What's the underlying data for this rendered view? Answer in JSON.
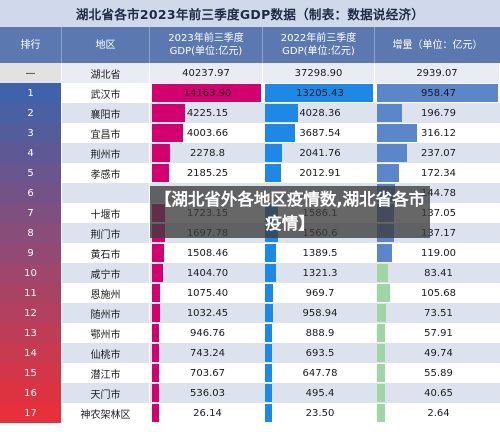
{
  "title": "湖北省各市2023年前三季度GDP数据（制表：数据说经济）",
  "headers": {
    "rank": "排行",
    "region": "地区",
    "gdp2023": "2023年前三季度GDP(单位:亿元)",
    "gdp2022": "2022年前三季度GDP(单位:亿元)",
    "growth": "增量（单位：亿元）"
  },
  "overlay_text": "【湖北省外各地区疫情数,湖北省各市疫情】",
  "colors": {
    "gdp2023_bar": "#d4006f",
    "gdp2022_bar": "#1d88e6",
    "growth_bar": "#5b86c9",
    "growth_low": "#9fd6a3",
    "row_alt": "#dce3ef",
    "rank_gradient_start": "#3e63aa",
    "rank_gradient_end": "#e8303a"
  },
  "total": {
    "rank": "—",
    "region": "湖北省",
    "gdp2023": "40237.97",
    "gdp2022": "37298.90",
    "growth": "2939.07"
  },
  "chart_data": {
    "type": "table",
    "title": "湖北省各市2023年前三季度GDP数据（制表：数据说经济）",
    "columns": [
      "排行",
      "地区",
      "2023年前三季度GDP(单位:亿元)",
      "2022年前三季度GDP(单位:亿元)",
      "增量（单位：亿元）"
    ],
    "rows": [
      {
        "rank": "1",
        "region": "武汉市",
        "gdp2023": "14163.90",
        "gdp2022": "13205.43",
        "growth": "958.47"
      },
      {
        "rank": "2",
        "region": "襄阳市",
        "gdp2023": "4225.15",
        "gdp2022": "4028.36",
        "growth": "196.79"
      },
      {
        "rank": "3",
        "region": "宜昌市",
        "gdp2023": "4003.66",
        "gdp2022": "3687.54",
        "growth": "316.12"
      },
      {
        "rank": "4",
        "region": "荆州市",
        "gdp2023": "2278.8",
        "gdp2022": "2041.76",
        "growth": "237.07"
      },
      {
        "rank": "5",
        "region": "孝感市",
        "gdp2023": "2185.25",
        "gdp2022": "2012.91",
        "growth": "172.34"
      },
      {
        "rank": "6",
        "region": "",
        "gdp2023": "",
        "gdp2022": "",
        "growth": "144.78"
      },
      {
        "rank": "7",
        "region": "十堰市",
        "gdp2023": "1723.15",
        "gdp2022": "1586.1",
        "growth": "137.05"
      },
      {
        "rank": "8",
        "region": "荆门市",
        "gdp2023": "1697.78",
        "gdp2022": "1560.6",
        "growth": "137.17"
      },
      {
        "rank": "9",
        "region": "黄石市",
        "gdp2023": "1508.46",
        "gdp2022": "1389.5",
        "growth": "119.00"
      },
      {
        "rank": "10",
        "region": "咸宁市",
        "gdp2023": "1404.70",
        "gdp2022": "1321.3",
        "growth": "83.41"
      },
      {
        "rank": "11",
        "region": "恩施州",
        "gdp2023": "1075.40",
        "gdp2022": "969.7",
        "growth": "105.68"
      },
      {
        "rank": "12",
        "region": "随州市",
        "gdp2023": "1032.45",
        "gdp2022": "958.94",
        "growth": "73.51"
      },
      {
        "rank": "13",
        "region": "鄂州市",
        "gdp2023": "946.76",
        "gdp2022": "888.9",
        "growth": "57.91"
      },
      {
        "rank": "14",
        "region": "仙桃市",
        "gdp2023": "743.24",
        "gdp2022": "693.5",
        "growth": "49.74"
      },
      {
        "rank": "15",
        "region": "潜江市",
        "gdp2023": "703.67",
        "gdp2022": "647.78",
        "growth": "55.89"
      },
      {
        "rank": "16",
        "region": "天门市",
        "gdp2023": "536.03",
        "gdp2022": "495.4",
        "growth": "40.65"
      },
      {
        "rank": "17",
        "region": "神农架林区",
        "gdp2023": "26.14",
        "gdp2022": "23.50",
        "growth": "2.64"
      }
    ]
  }
}
